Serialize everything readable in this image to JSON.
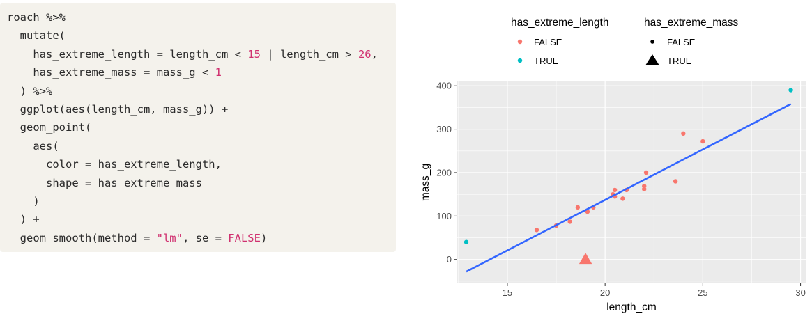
{
  "code": {
    "lines": [
      [
        {
          "t": "roach %>%",
          "k": "plain"
        }
      ],
      [
        {
          "t": "  mutate(",
          "k": "plain"
        }
      ],
      [
        {
          "t": "    has_extreme_length = length_cm < ",
          "k": "plain"
        },
        {
          "t": "15",
          "k": "num"
        },
        {
          "t": " | length_cm > ",
          "k": "plain"
        },
        {
          "t": "26",
          "k": "num"
        },
        {
          "t": ",",
          "k": "plain"
        }
      ],
      [
        {
          "t": "    has_extreme_mass = mass_g < ",
          "k": "plain"
        },
        {
          "t": "1",
          "k": "num"
        }
      ],
      [
        {
          "t": "  ) %>%",
          "k": "plain"
        }
      ],
      [
        {
          "t": "  ggplot(aes(length_cm, mass_g)) +",
          "k": "plain"
        }
      ],
      [
        {
          "t": "  geom_point(",
          "k": "plain"
        }
      ],
      [
        {
          "t": "    aes(",
          "k": "plain"
        }
      ],
      [
        {
          "t": "      color = has_extreme_length,",
          "k": "plain"
        }
      ],
      [
        {
          "t": "      shape = has_extreme_mass",
          "k": "plain"
        }
      ],
      [
        {
          "t": "    )",
          "k": "plain"
        }
      ],
      [
        {
          "t": "  ) +",
          "k": "plain"
        }
      ],
      [
        {
          "t": "  geom_smooth(method = ",
          "k": "plain"
        },
        {
          "t": "\"lm\"",
          "k": "str"
        },
        {
          "t": ", se = ",
          "k": "plain"
        },
        {
          "t": "FALSE",
          "k": "bool"
        },
        {
          "t": ")",
          "k": "plain"
        }
      ]
    ]
  },
  "colors": {
    "false_color": "#f8766d",
    "true_color": "#00bfc4",
    "line_color": "#3366ff",
    "panel_bg": "#ebebeb",
    "grid": "#ffffff"
  },
  "chart_data": {
    "type": "scatter",
    "xlabel": "length_cm",
    "ylabel": "mass_g",
    "xlim": [
      12.4,
      30.3
    ],
    "ylim": [
      -55,
      410
    ],
    "xticks": [
      15,
      20,
      25,
      30
    ],
    "yticks": [
      0,
      100,
      200,
      300,
      400
    ],
    "grid": true,
    "legend_position": "top",
    "legends": [
      {
        "title": "has_extreme_length",
        "kind": "color",
        "entries": [
          {
            "label": "FALSE",
            "color": "#f8766d"
          },
          {
            "label": "TRUE",
            "color": "#00bfc4"
          }
        ]
      },
      {
        "title": "has_extreme_mass",
        "kind": "shape",
        "entries": [
          {
            "label": "FALSE",
            "shape": "point"
          },
          {
            "label": "TRUE",
            "shape": "triangle"
          }
        ]
      }
    ],
    "points": [
      {
        "x": 12.9,
        "y": 40,
        "extreme_length": true,
        "extreme_mass": false
      },
      {
        "x": 16.5,
        "y": 68,
        "extreme_length": false,
        "extreme_mass": false
      },
      {
        "x": 17.5,
        "y": 78,
        "extreme_length": false,
        "extreme_mass": false
      },
      {
        "x": 18.2,
        "y": 87,
        "extreme_length": false,
        "extreme_mass": false
      },
      {
        "x": 18.6,
        "y": 120,
        "extreme_length": false,
        "extreme_mass": false
      },
      {
        "x": 19.1,
        "y": 110,
        "extreme_length": false,
        "extreme_mass": false
      },
      {
        "x": 19.4,
        "y": 120,
        "extreme_length": false,
        "extreme_mass": false
      },
      {
        "x": 20.4,
        "y": 150,
        "extreme_length": false,
        "extreme_mass": false
      },
      {
        "x": 20.5,
        "y": 145,
        "extreme_length": false,
        "extreme_mass": false
      },
      {
        "x": 20.5,
        "y": 160,
        "extreme_length": false,
        "extreme_mass": false
      },
      {
        "x": 20.9,
        "y": 140,
        "extreme_length": false,
        "extreme_mass": false
      },
      {
        "x": 21.1,
        "y": 160,
        "extreme_length": false,
        "extreme_mass": false
      },
      {
        "x": 22.0,
        "y": 162,
        "extreme_length": false,
        "extreme_mass": false
      },
      {
        "x": 22.0,
        "y": 169,
        "extreme_length": false,
        "extreme_mass": false
      },
      {
        "x": 22.1,
        "y": 200,
        "extreme_length": false,
        "extreme_mass": false
      },
      {
        "x": 23.6,
        "y": 180,
        "extreme_length": false,
        "extreme_mass": false
      },
      {
        "x": 24.0,
        "y": 290,
        "extreme_length": false,
        "extreme_mass": false
      },
      {
        "x": 25.0,
        "y": 272,
        "extreme_length": false,
        "extreme_mass": false
      },
      {
        "x": 29.5,
        "y": 390,
        "extreme_length": true,
        "extreme_mass": false
      },
      {
        "x": 19.0,
        "y": 0,
        "extreme_length": false,
        "extreme_mass": true
      }
    ],
    "fit_line": {
      "method": "lm",
      "x": [
        12.9,
        29.5
      ],
      "y": [
        -28,
        358
      ]
    }
  }
}
